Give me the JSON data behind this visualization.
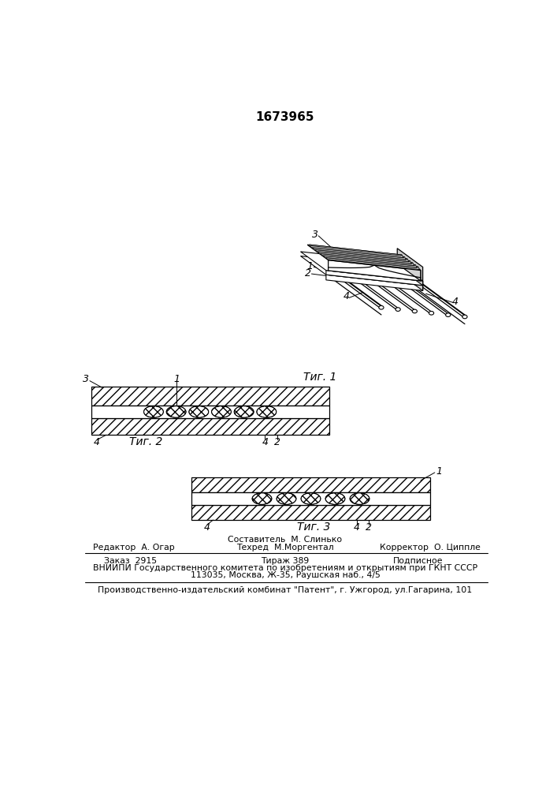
{
  "title": "1673965",
  "bg_color": "#ffffff",
  "fig1_label": "Τиг. 1",
  "fig2_label": "Τиг. 2",
  "fig3_label": "Τиг. 3",
  "footer_editor": "Редактор  А. Огар",
  "footer_composer": "Составитель  М. Слинько",
  "footer_techred": "Техред  М.Моргентал",
  "footer_corrector": "Корректор  О. Циппле",
  "footer_zakaz": "Заказ  2915",
  "footer_tirazh": "Тираж 389",
  "footer_podpisnoe": "Подписное",
  "footer_vniipи": "ВНИИПИ Государственного комитета по изобретениям и открытиям при ГКНТ СССР",
  "footer_addr": "113035, Москва, Ж-35, Раушская наб., 4/5",
  "footer_patent": "Производственно-издательский комбинат \"Патент\", г. Ужгород, ул.Гагарина, 101"
}
